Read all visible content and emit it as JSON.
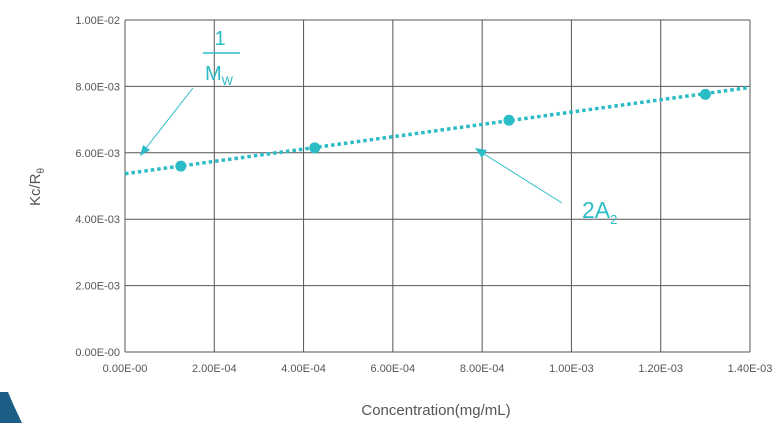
{
  "chart_data": {
    "type": "scatter",
    "title": "",
    "xlabel": "Concentration(mg/mL)",
    "ylabel_main": "Kc/R",
    "ylabel_sub": "θ",
    "xlim": [
      0,
      0.0014
    ],
    "ylim": [
      0,
      0.01
    ],
    "grid": true,
    "x_ticks": [
      0,
      0.0002,
      0.0004,
      0.0006,
      0.0008,
      0.001,
      0.0012,
      0.0014
    ],
    "x_tick_labels": [
      "0.00E-00",
      "2.00E-04",
      "4.00E-04",
      "6.00E-04",
      "8.00E-04",
      "1.00E-03",
      "1.20E-03",
      "1.40E-03"
    ],
    "y_ticks": [
      0,
      0.002,
      0.004,
      0.006,
      0.008,
      0.01
    ],
    "y_tick_labels": [
      "0.00E-00",
      "2.00E-03",
      "4.00E-03",
      "6.00E-03",
      "8.00E-03",
      "1.00E-02"
    ],
    "series": [
      {
        "points": [
          {
            "x": 0.000125,
            "y": 0.0056
          },
          {
            "x": 0.000425,
            "y": 0.00615
          },
          {
            "x": 0.00086,
            "y": 0.00698
          },
          {
            "x": 0.0013,
            "y": 0.00776
          }
        ]
      }
    ],
    "trendline": {
      "style": "dotted",
      "x": [
        0,
        0.0014
      ],
      "y": [
        0.00537,
        0.00797
      ]
    },
    "annotations": {
      "intercept_numerator": "1",
      "intercept_denominator_main": "M",
      "intercept_denominator_sub": "W",
      "slope_main": "2A",
      "slope_sub": "2"
    },
    "colors": {
      "accent": "#2bbcc6",
      "grid": "#555555",
      "text": "#555555",
      "corner_mark": "#1c5f86"
    }
  }
}
